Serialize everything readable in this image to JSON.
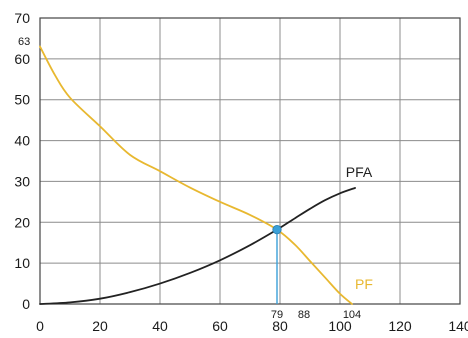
{
  "chart_data": {
    "type": "line",
    "title": "",
    "xlabel": "",
    "ylabel": "",
    "xlim": [
      0,
      140
    ],
    "ylim": [
      0,
      70
    ],
    "x_ticks": [
      "0",
      "20",
      "40",
      "60",
      "80",
      "100",
      "120",
      "140"
    ],
    "y_ticks": [
      "0",
      "10",
      "20",
      "30",
      "40",
      "50",
      "60",
      "70"
    ],
    "grid": true,
    "series": [
      {
        "name": "PFA",
        "color": "#222222",
        "x": [
          0,
          10,
          20,
          30,
          40,
          50,
          60,
          70,
          79,
          85,
          90,
          95,
          100,
          105
        ],
        "y": [
          0,
          0.4,
          1.3,
          2.9,
          5,
          7.6,
          10.7,
          14.4,
          18.2,
          21,
          23.3,
          25.4,
          27.1,
          28.4
        ]
      },
      {
        "name": "PF",
        "color": "#e8b830",
        "x": [
          0,
          5,
          10,
          20,
          30,
          40,
          50,
          60,
          70,
          79,
          85,
          90,
          95,
          100,
          104
        ],
        "y": [
          63,
          56,
          50.5,
          43.5,
          36.5,
          32.5,
          28.5,
          25,
          21.8,
          18.2,
          14.5,
          10.5,
          6.5,
          2.5,
          0
        ]
      }
    ],
    "intersection": {
      "x": 79,
      "y": 18.2,
      "marker_color": "#3aa0d8",
      "drop_line_color": "#3aa0d8"
    },
    "annotations": {
      "y_intercept_label": "63",
      "x_marks": [
        {
          "label": "79",
          "x": 79
        },
        {
          "label": "88",
          "x": 88
        },
        {
          "label": "104",
          "x": 104
        }
      ]
    }
  }
}
